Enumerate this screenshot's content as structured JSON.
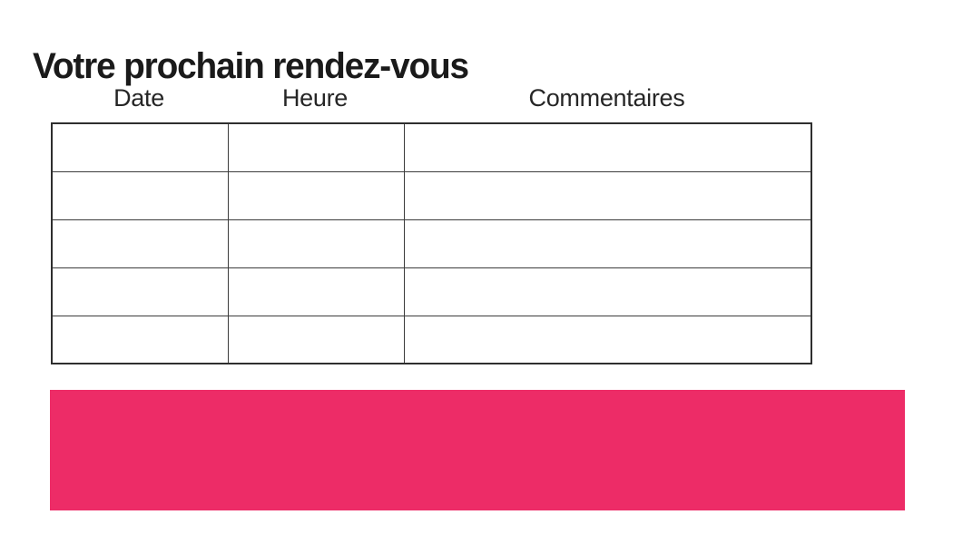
{
  "page": {
    "title": "Votre prochain rendez-vous"
  },
  "table": {
    "headers": [
      "Date",
      "Heure",
      "Commentaires"
    ],
    "rows": [
      [
        "",
        "",
        ""
      ],
      [
        "",
        "",
        ""
      ],
      [
        "",
        "",
        ""
      ],
      [
        "",
        "",
        ""
      ],
      [
        "",
        "",
        ""
      ]
    ]
  },
  "colors": {
    "banner": "#ED2C67",
    "table_border": "#3c3c3c",
    "title_text": "#1a1a1a",
    "header_text": "#262626"
  }
}
